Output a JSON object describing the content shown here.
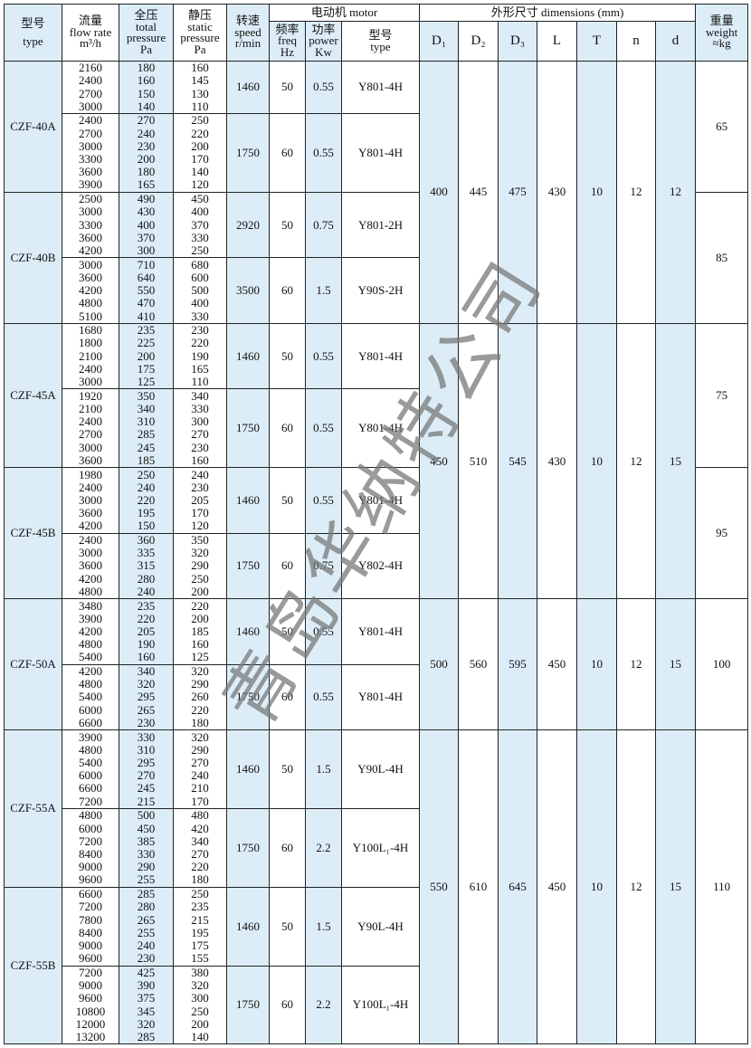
{
  "header": {
    "type_cn": "型号",
    "type_en": "type",
    "flow_cn": "流量",
    "flow_en": "flow rate",
    "flow_unit": "m³/h",
    "total_cn": "全压",
    "total_en": "total pressure",
    "total_unit": "Pa",
    "static_cn": "静压",
    "static_en": "static pressure",
    "static_unit": "Pa",
    "speed_cn": "转速",
    "speed_en": "speed",
    "speed_unit": "r/min",
    "motor_title": "电动机  motor",
    "freq_cn": "频率",
    "freq_en": "freq",
    "freq_unit": "Hz",
    "power_cn": "功率",
    "power_en": "power",
    "power_unit": "Kw",
    "mtype_cn": "型号",
    "mtype_en": "type",
    "dims_title": "外形尺寸   dimensions (mm)",
    "dims": [
      "D₁",
      "D₂",
      "D₃",
      "L",
      "T",
      "n",
      "d"
    ],
    "weight_cn": "重量",
    "weight_en": "weight",
    "weight_unit": "≈kg"
  },
  "watermark": "青岛华纳特公司",
  "colors": {
    "shade": "#dcedf8",
    "border": "#222222"
  },
  "groups": [
    {
      "dims": [
        "400",
        "445",
        "475",
        "430",
        "10",
        "12",
        "12"
      ],
      "models": [
        {
          "type": "CZF-40A",
          "weight": "65",
          "subs": [
            {
              "flow": [
                "2160",
                "2400",
                "2700",
                "3000"
              ],
              "total": [
                "180",
                "160",
                "150",
                "140"
              ],
              "static": [
                "160",
                "145",
                "130",
                "110"
              ],
              "speed": "1460",
              "freq": "50",
              "power": "0.55",
              "motor": "Y801-4H"
            },
            {
              "flow": [
                "2400",
                "2700",
                "3000",
                "3300",
                "3600",
                "3900"
              ],
              "total": [
                "270",
                "240",
                "230",
                "200",
                "180",
                "165"
              ],
              "static": [
                "250",
                "220",
                "200",
                "170",
                "140",
                "120"
              ],
              "speed": "1750",
              "freq": "60",
              "power": "0.55",
              "motor": "Y801-4H"
            }
          ]
        },
        {
          "type": "CZF-40B",
          "weight": "85",
          "subs": [
            {
              "flow": [
                "2500",
                "3000",
                "3300",
                "3600",
                "4200"
              ],
              "total": [
                "490",
                "430",
                "400",
                "370",
                "300"
              ],
              "static": [
                "450",
                "400",
                "370",
                "330",
                "250"
              ],
              "speed": "2920",
              "freq": "50",
              "power": "0.75",
              "motor": "Y801-2H"
            },
            {
              "flow": [
                "3000",
                "3600",
                "4200",
                "4800",
                "5100"
              ],
              "total": [
                "710",
                "640",
                "550",
                "470",
                "410"
              ],
              "static": [
                "680",
                "600",
                "500",
                "400",
                "330"
              ],
              "speed": "3500",
              "freq": "60",
              "power": "1.5",
              "motor": "Y90S-2H"
            }
          ]
        }
      ]
    },
    {
      "dims": [
        "450",
        "510",
        "545",
        "430",
        "10",
        "12",
        "15"
      ],
      "models": [
        {
          "type": "CZF-45A",
          "weight": "75",
          "subs": [
            {
              "flow": [
                "1680",
                "1800",
                "2100",
                "2400",
                "3000"
              ],
              "total": [
                "235",
                "225",
                "200",
                "175",
                "125"
              ],
              "static": [
                "230",
                "220",
                "190",
                "165",
                "110"
              ],
              "speed": "1460",
              "freq": "50",
              "power": "0.55",
              "motor": "Y801-4H"
            },
            {
              "flow": [
                "1920",
                "2100",
                "2400",
                "2700",
                "3000",
                "3600"
              ],
              "total": [
                "350",
                "340",
                "310",
                "285",
                "245",
                "185"
              ],
              "static": [
                "340",
                "330",
                "300",
                "270",
                "230",
                "160"
              ],
              "speed": "1750",
              "freq": "60",
              "power": "0.55",
              "motor": "Y801-4H"
            }
          ]
        },
        {
          "type": "CZF-45B",
          "weight": "95",
          "subs": [
            {
              "flow": [
                "1980",
                "2400",
                "3000",
                "3600",
                "4200"
              ],
              "total": [
                "250",
                "240",
                "220",
                "195",
                "150"
              ],
              "static": [
                "240",
                "230",
                "205",
                "170",
                "120"
              ],
              "speed": "1460",
              "freq": "50",
              "power": "0.55",
              "motor": "Y801-4H"
            },
            {
              "flow": [
                "2400",
                "3000",
                "3600",
                "4200",
                "4800"
              ],
              "total": [
                "360",
                "335",
                "315",
                "280",
                "240"
              ],
              "static": [
                "350",
                "320",
                "290",
                "250",
                "200"
              ],
              "speed": "1750",
              "freq": "60",
              "power": "0.75",
              "motor": "Y802-4H"
            }
          ]
        }
      ]
    },
    {
      "dims": [
        "500",
        "560",
        "595",
        "450",
        "10",
        "12",
        "15"
      ],
      "models": [
        {
          "type": "CZF-50A",
          "weight": "100",
          "subs": [
            {
              "flow": [
                "3480",
                "3900",
                "4200",
                "4800",
                "5400"
              ],
              "total": [
                "235",
                "220",
                "205",
                "190",
                "160"
              ],
              "static": [
                "220",
                "200",
                "185",
                "160",
                "125"
              ],
              "speed": "1460",
              "freq": "50",
              "power": "0.55",
              "motor": "Y801-4H"
            },
            {
              "flow": [
                "4200",
                "4800",
                "5400",
                "6000",
                "6600"
              ],
              "total": [
                "340",
                "320",
                "295",
                "265",
                "230"
              ],
              "static": [
                "320",
                "290",
                "260",
                "220",
                "180"
              ],
              "speed": "1750",
              "freq": "60",
              "power": "0.55",
              "motor": "Y801-4H"
            }
          ]
        }
      ]
    },
    {
      "dims": [
        "550",
        "610",
        "645",
        "450",
        "10",
        "12",
        "15"
      ],
      "models": [
        {
          "type": "CZF-55A",
          "weight": "110",
          "subs": [
            {
              "flow": [
                "3900",
                "4800",
                "5400",
                "6000",
                "6600",
                "7200"
              ],
              "total": [
                "330",
                "310",
                "295",
                "270",
                "245",
                "215"
              ],
              "static": [
                "320",
                "290",
                "270",
                "240",
                "210",
                "170"
              ],
              "speed": "1460",
              "freq": "50",
              "power": "1.5",
              "motor": "Y90L-4H"
            },
            {
              "flow": [
                "4800",
                "6000",
                "7200",
                "8400",
                "9000",
                "9600"
              ],
              "total": [
                "500",
                "450",
                "385",
                "330",
                "290",
                "255"
              ],
              "static": [
                "480",
                "420",
                "340",
                "270",
                "220",
                "180"
              ],
              "speed": "1750",
              "freq": "60",
              "power": "2.2",
              "motor": "Y100L₁-4H"
            }
          ]
        },
        {
          "type": "CZF-55B",
          "weight": "",
          "subs": [
            {
              "flow": [
                "6600",
                "7200",
                "7800",
                "8400",
                "9000",
                "9600"
              ],
              "total": [
                "285",
                "280",
                "265",
                "255",
                "240",
                "230"
              ],
              "static": [
                "250",
                "235",
                "215",
                "195",
                "175",
                "155"
              ],
              "speed": "1460",
              "freq": "50",
              "power": "1.5",
              "motor": "Y90L-4H"
            },
            {
              "flow": [
                "7200",
                "9000",
                "9600",
                "10800",
                "12000",
                "13200"
              ],
              "total": [
                "425",
                "390",
                "375",
                "345",
                "320",
                "285"
              ],
              "static": [
                "380",
                "320",
                "300",
                "250",
                "200",
                "140"
              ],
              "speed": "1750",
              "freq": "60",
              "power": "2.2",
              "motor": "Y100L₁-4H"
            }
          ]
        }
      ]
    }
  ]
}
